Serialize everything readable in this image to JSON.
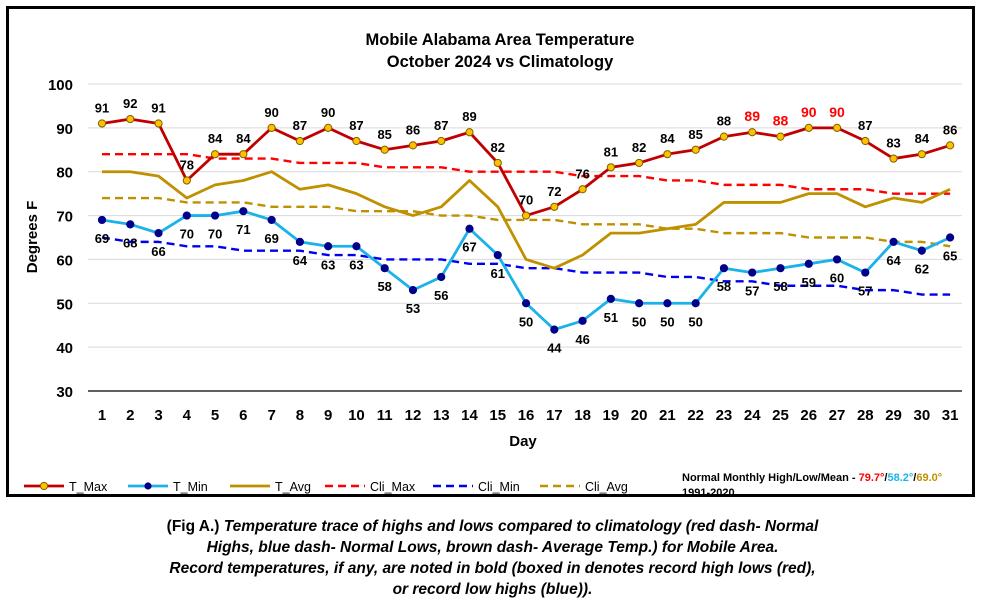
{
  "chart_data": {
    "type": "line",
    "title": "Mobile Alabama Area Temperature",
    "subtitle": "October 2024 vs Climatology",
    "xlabel": "Day",
    "ylabel": "Degrees F",
    "xlim": [
      1,
      31
    ],
    "ylim": [
      30,
      100
    ],
    "y_ticks": [
      30,
      40,
      50,
      60,
      70,
      80,
      90,
      100
    ],
    "x": [
      1,
      2,
      3,
      4,
      5,
      6,
      7,
      8,
      9,
      10,
      11,
      12,
      13,
      14,
      15,
      16,
      17,
      18,
      19,
      20,
      21,
      22,
      23,
      24,
      25,
      26,
      27,
      28,
      29,
      30,
      31
    ],
    "grid": "horizontal",
    "legend_position": "bottom",
    "series": [
      {
        "name": "T_Max",
        "color": "#c00000",
        "style": "solid",
        "marker": "gold-circle",
        "values": [
          91,
          92,
          91,
          78,
          84,
          84,
          90,
          87,
          90,
          87,
          85,
          86,
          87,
          89,
          82,
          70,
          72,
          76,
          81,
          82,
          84,
          85,
          88,
          89,
          88,
          90,
          90,
          87,
          83,
          84,
          86
        ],
        "record_days": [
          24,
          25,
          26,
          27
        ]
      },
      {
        "name": "T_Min",
        "color": "#1ab2e8",
        "style": "solid",
        "marker": "navy-circle",
        "values": [
          69,
          68,
          66,
          70,
          70,
          71,
          69,
          64,
          63,
          63,
          58,
          53,
          56,
          67,
          61,
          50,
          44,
          46,
          51,
          50,
          50,
          50,
          58,
          57,
          58,
          59,
          60,
          57,
          64,
          62,
          65
        ]
      },
      {
        "name": "T_Avg",
        "color": "#bf9000",
        "style": "solid",
        "values": [
          80,
          80,
          79,
          74,
          77,
          78,
          80,
          76,
          77,
          75,
          72,
          70,
          72,
          78,
          72,
          60,
          58,
          61,
          66,
          66,
          67,
          68,
          73,
          73,
          73,
          75,
          75,
          72,
          74,
          73,
          76
        ]
      },
      {
        "name": "Cli_Max",
        "color": "#ff0000",
        "style": "dashed",
        "values": [
          84,
          84,
          84,
          84,
          83,
          83,
          83,
          82,
          82,
          82,
          81,
          81,
          81,
          80,
          80,
          80,
          80,
          79,
          79,
          79,
          78,
          78,
          77,
          77,
          77,
          76,
          76,
          76,
          75,
          75,
          75
        ]
      },
      {
        "name": "Cli_Min",
        "color": "#0000ee",
        "style": "dashed",
        "values": [
          65,
          64,
          64,
          63,
          63,
          62,
          62,
          62,
          61,
          61,
          60,
          60,
          60,
          59,
          59,
          58,
          58,
          57,
          57,
          57,
          56,
          56,
          55,
          55,
          54,
          54,
          54,
          53,
          53,
          52,
          52
        ]
      },
      {
        "name": "Cli_Avg",
        "color": "#bf9000",
        "style": "dashed",
        "values": [
          74,
          74,
          74,
          73,
          73,
          73,
          72,
          72,
          72,
          71,
          71,
          71,
          70,
          70,
          69,
          69,
          69,
          68,
          68,
          68,
          67,
          67,
          66,
          66,
          66,
          65,
          65,
          65,
          64,
          64,
          63
        ]
      }
    ]
  },
  "normals": {
    "label": "Normal Monthly High/Low/Mean - ",
    "high": "79.7°",
    "sep1": "/",
    "low": "58.2°",
    "sep2": "/",
    "mean": "69.0°",
    "period": "1991-2020",
    "high_color": "#ff0000",
    "low_color": "#1ab2e8",
    "mean_color": "#bf9000"
  },
  "caption": {
    "lead": "(Fig A.) ",
    "line1": "Temperature trace of highs and lows compared to climatology (red dash- Normal",
    "line2": "Highs, blue dash- Normal Lows, brown dash- Average Temp.) for Mobile Area.",
    "line3": "Record temperatures, if any, are noted in bold (boxed in denotes record high lows (red),",
    "line4": "or record low highs (blue))."
  }
}
